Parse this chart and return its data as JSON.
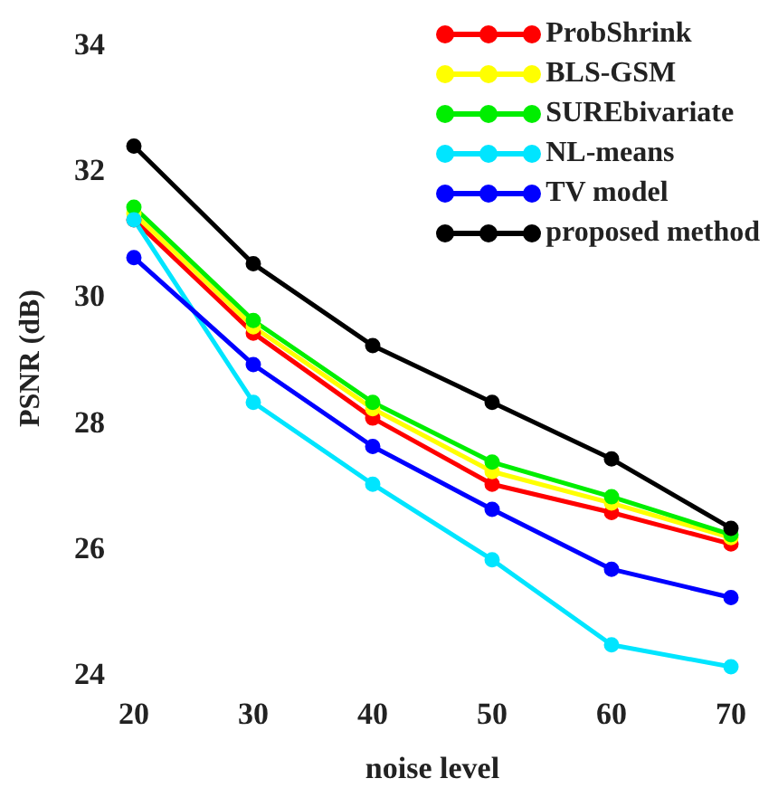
{
  "chart_data": {
    "type": "line",
    "xlabel": "noise level",
    "ylabel": "PSNR (dB)",
    "x": [
      20,
      30,
      40,
      50,
      60,
      70
    ],
    "xlim": [
      20,
      70
    ],
    "xticks": [
      20,
      30,
      40,
      50,
      60,
      70
    ],
    "ylim": [
      24,
      34
    ],
    "yticks": [
      24,
      26,
      28,
      30,
      32,
      34
    ],
    "grid": false,
    "legend": "top right",
    "marker": "circle",
    "line_style": "solid",
    "series": [
      {
        "name": "ProbShrink",
        "color": "#ff0000",
        "values": [
          31.2,
          29.4,
          28.05,
          27.0,
          26.55,
          26.05
        ]
      },
      {
        "name": "BLS-GSM",
        "color": "#ffff00",
        "values": [
          31.3,
          29.5,
          28.2,
          27.2,
          26.7,
          26.15
        ]
      },
      {
        "name": "SUREbivariate",
        "color": "#00ee00",
        "values": [
          31.4,
          29.6,
          28.3,
          27.35,
          26.8,
          26.2
        ]
      },
      {
        "name": "NL-means",
        "color": "#00e5ff",
        "values": [
          31.2,
          28.3,
          27.0,
          25.8,
          24.45,
          24.1
        ]
      },
      {
        "name": "TV model",
        "color": "#0000ff",
        "values": [
          30.6,
          28.9,
          27.6,
          26.6,
          25.65,
          25.2
        ]
      },
      {
        "name": "proposed method",
        "color": "#000000",
        "values": [
          32.37,
          30.5,
          29.2,
          28.3,
          27.4,
          26.3
        ]
      }
    ]
  }
}
